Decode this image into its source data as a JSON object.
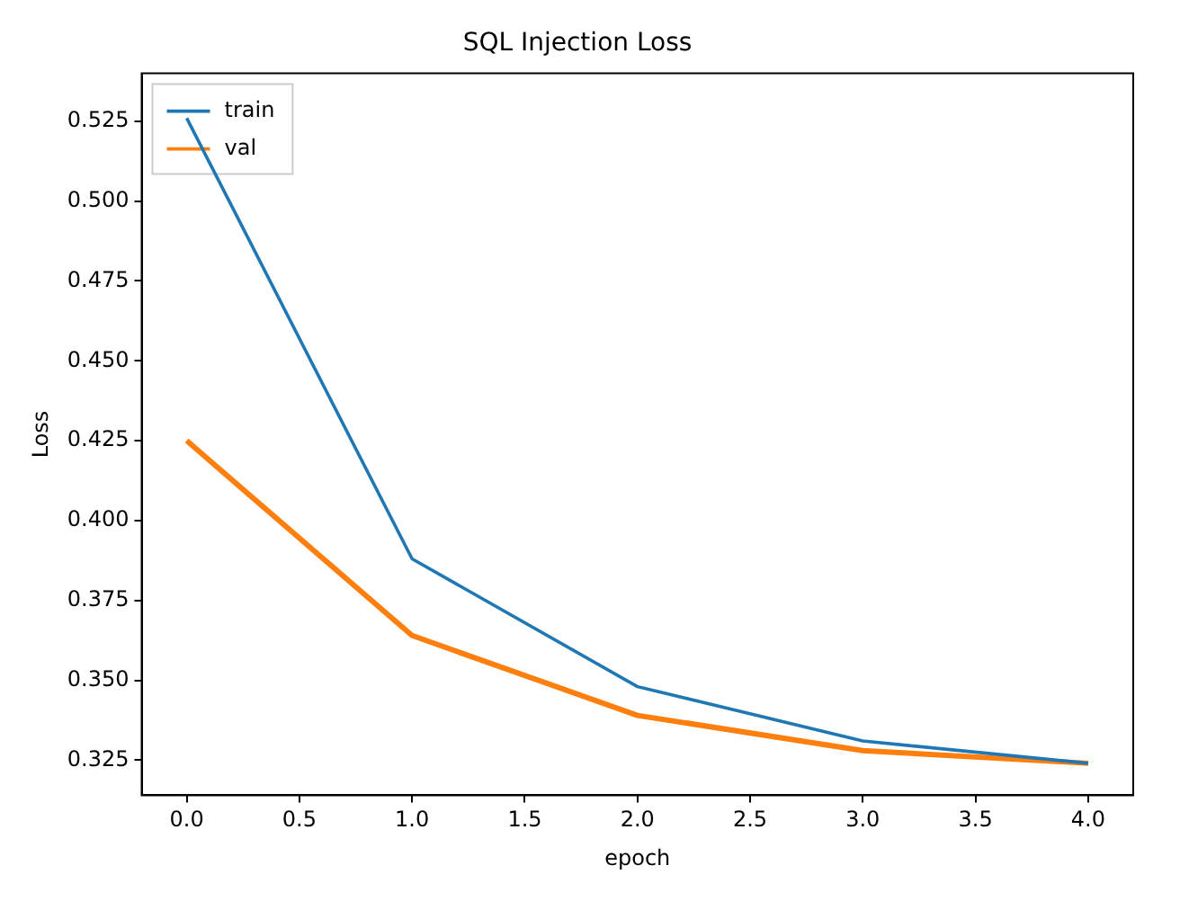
{
  "chart_data": {
    "type": "line",
    "title": "SQL Injection Loss",
    "xlabel": "epoch",
    "ylabel": "Loss",
    "x": [
      0,
      1,
      2,
      3,
      4
    ],
    "series": [
      {
        "name": "train",
        "color": "#1f77b4",
        "values": [
          0.526,
          0.388,
          0.348,
          0.331,
          0.324
        ]
      },
      {
        "name": "val",
        "color": "#ff7f0e",
        "values": [
          0.425,
          0.364,
          0.339,
          0.328,
          0.324
        ]
      }
    ],
    "xlim": [
      -0.2,
      4.2
    ],
    "xticks": [
      {
        "value": 0,
        "label": "0.0"
      },
      {
        "value": 0.5,
        "label": "0.5"
      },
      {
        "value": 1,
        "label": "1.0"
      },
      {
        "value": 1.5,
        "label": "1.5"
      },
      {
        "value": 2,
        "label": "2.0"
      },
      {
        "value": 2.5,
        "label": "2.5"
      },
      {
        "value": 3,
        "label": "3.0"
      },
      {
        "value": 3.5,
        "label": "3.5"
      },
      {
        "value": 4,
        "label": "4.0"
      }
    ],
    "ylim": [
      0.314,
      0.54
    ],
    "yticks": [
      0.325,
      {
        "value": 0.35,
        "label": "0.350"
      },
      0.375,
      {
        "value": 0.4,
        "label": "0.400"
      },
      0.425,
      {
        "value": 0.45,
        "label": "0.450"
      },
      0.475,
      {
        "value": 0.5,
        "label": "0.500"
      },
      0.525
    ],
    "grid": false,
    "legend": "top left",
    "marker": "none",
    "line_style": "solid"
  }
}
